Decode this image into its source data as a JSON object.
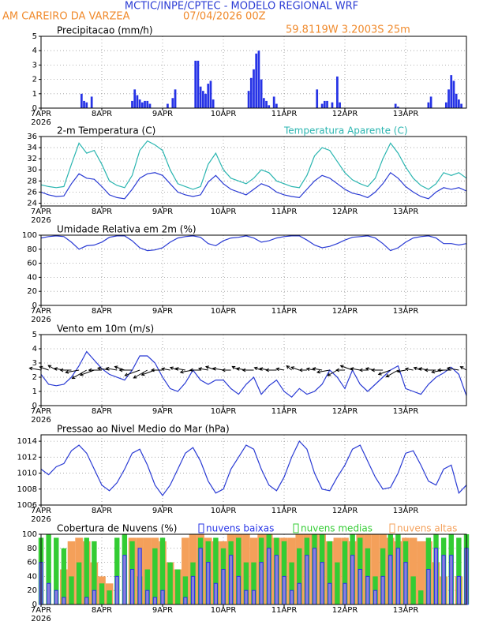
{
  "header": {
    "title": "MCTIC/INPE/CPTEC - MODELO REGIONAL WRF",
    "location": "AM CAREIRO DA VARZEA",
    "run": "07/04/2026 00Z",
    "coordinates": "59.8119W 3.2003S 25m"
  },
  "time_axis": {
    "xlim": [
      0,
      168
    ],
    "xticks": [
      {
        "value": 0,
        "label": "7APR"
      },
      {
        "value": 24,
        "label": "8APR"
      },
      {
        "value": 48,
        "label": "9APR"
      },
      {
        "value": 72,
        "label": "10APR"
      },
      {
        "value": 96,
        "label": "11APR"
      },
      {
        "value": 120,
        "label": "12APR"
      },
      {
        "value": 144,
        "label": "13APR"
      }
    ],
    "year": "2026",
    "x": [
      0,
      3,
      6,
      9,
      12,
      15,
      18,
      21,
      24,
      27,
      30,
      33,
      36,
      39,
      42,
      45,
      48,
      51,
      54,
      57,
      60,
      63,
      66,
      69,
      72,
      75,
      78,
      81,
      84,
      87,
      90,
      93,
      96,
      99,
      102,
      105,
      108,
      111,
      114,
      117,
      120,
      123,
      126,
      129,
      132,
      135,
      138,
      141,
      144,
      147,
      150,
      153,
      156,
      159,
      162,
      165,
      168
    ]
  },
  "chart_data": [
    {
      "type": "bar",
      "title": "Precipitacao (mm/h)",
      "color": "#2633e6",
      "x": [
        16,
        17,
        18,
        20,
        36,
        37,
        38,
        39,
        40,
        41,
        42,
        43,
        50,
        52,
        53,
        61,
        62,
        63,
        64,
        65,
        66,
        67,
        68,
        82,
        83,
        84,
        85,
        86,
        87,
        88,
        89,
        90,
        92,
        93,
        109,
        111,
        112,
        113,
        115,
        117,
        118,
        140,
        141,
        153,
        154,
        160,
        161,
        162,
        163,
        164,
        165,
        166
      ],
      "values": [
        1.0,
        0.5,
        0.4,
        0.8,
        0.5,
        1.3,
        0.9,
        0.6,
        0.4,
        0.5,
        0.5,
        0.3,
        0.3,
        0.7,
        1.3,
        3.3,
        3.3,
        1.5,
        1.2,
        1.0,
        1.7,
        1.9,
        0.6,
        1.2,
        2.1,
        2.7,
        3.8,
        4.0,
        2.0,
        0.7,
        0.5,
        0.2,
        0.8,
        0.3,
        1.3,
        0.3,
        0.5,
        0.5,
        0.4,
        2.2,
        0.4,
        0.3,
        0.1,
        0.4,
        0.8,
        0.4,
        1.3,
        2.3,
        1.9,
        1.0,
        0.6,
        0.3
      ],
      "ylim": [
        0,
        5
      ],
      "yticks": [
        0,
        1,
        2,
        3,
        4,
        5
      ],
      "grid": true
    },
    {
      "type": "line",
      "series": [
        {
          "name": "2-m Temperatura (C)",
          "color": "#2a3bd4",
          "values": [
            26.0,
            25.5,
            25.2,
            25.3,
            27.5,
            29.3,
            28.5,
            28.3,
            27.0,
            25.5,
            25.0,
            24.8,
            26.5,
            28.5,
            29.3,
            29.5,
            29.0,
            27.5,
            26.0,
            25.5,
            25.2,
            25.5,
            27.8,
            29.0,
            27.5,
            26.5,
            26.0,
            25.5,
            26.5,
            27.5,
            27.0,
            26.0,
            25.5,
            25.2,
            25.0,
            26.5,
            28.0,
            29.0,
            28.5,
            27.5,
            26.5,
            25.8,
            25.5,
            25.0,
            26.0,
            27.5,
            29.5,
            28.5,
            27.0,
            26.0,
            25.2,
            24.8,
            26.0,
            26.8,
            26.5,
            26.8,
            26.2
          ]
        },
        {
          "name": "Temperatura Aparente (C)",
          "color": "#2ab5b0",
          "values": [
            27.3,
            27.0,
            26.8,
            27.0,
            31.0,
            34.8,
            33.0,
            33.5,
            31.0,
            28.0,
            27.2,
            26.8,
            29.0,
            33.5,
            35.2,
            34.5,
            33.5,
            30.0,
            27.5,
            27.0,
            26.5,
            27.0,
            31.0,
            33.0,
            30.0,
            28.5,
            28.0,
            27.5,
            28.5,
            30.0,
            29.5,
            28.0,
            27.5,
            27.0,
            26.8,
            29.0,
            32.5,
            34.0,
            33.5,
            31.5,
            29.5,
            28.2,
            27.5,
            27.0,
            28.5,
            32.0,
            34.8,
            33.0,
            30.5,
            28.5,
            27.2,
            26.5,
            27.5,
            29.5,
            29.0,
            29.5,
            28.5
          ]
        }
      ],
      "ylim": [
        23.5,
        36
      ],
      "yticks": [
        24,
        26,
        28,
        30,
        32,
        34,
        36
      ],
      "grid": true
    },
    {
      "type": "line",
      "title": "Umidade Relativa em 2m (%)",
      "color": "#2a3bd4",
      "values": [
        96,
        98,
        99,
        98,
        90,
        80,
        85,
        86,
        90,
        97,
        99,
        99,
        92,
        82,
        78,
        79,
        82,
        90,
        96,
        98,
        99,
        97,
        88,
        85,
        92,
        96,
        97,
        99,
        96,
        90,
        92,
        96,
        98,
        99,
        99,
        93,
        86,
        82,
        84,
        88,
        93,
        97,
        98,
        99,
        96,
        88,
        78,
        82,
        90,
        96,
        98,
        99,
        96,
        88,
        88,
        86,
        88
      ],
      "ylim": [
        0,
        100
      ],
      "yticks": [
        0,
        20,
        40,
        60,
        80,
        100
      ],
      "grid": true
    },
    {
      "type": "line",
      "title": "Vento em 10m (m/s)",
      "color": "#2a3bd4",
      "values": [
        2.2,
        1.5,
        1.4,
        1.5,
        2.0,
        2.8,
        3.8,
        3.2,
        2.6,
        2.2,
        2.0,
        1.8,
        2.5,
        3.5,
        3.5,
        3.0,
        2.0,
        1.2,
        1.0,
        1.6,
        2.5,
        1.8,
        1.5,
        1.8,
        1.8,
        1.2,
        0.8,
        1.5,
        2.0,
        0.8,
        1.4,
        1.8,
        1.0,
        0.6,
        1.2,
        0.8,
        1.0,
        1.5,
        2.5,
        2.0,
        1.2,
        2.5,
        1.5,
        1.0,
        1.5,
        2.0,
        2.5,
        2.8,
        1.2,
        1.0,
        0.8,
        1.5,
        2.0,
        2.3,
        2.7,
        2.2,
        0.7
      ],
      "directions": [
        100,
        110,
        120,
        100,
        90,
        80,
        60,
        70,
        90,
        100,
        100,
        110,
        90,
        70,
        60,
        70,
        90,
        100,
        110,
        100,
        80,
        90,
        100,
        110,
        100,
        90,
        120,
        100,
        90,
        110,
        100,
        90,
        100,
        130,
        110,
        90,
        100,
        100,
        80,
        60,
        90,
        110,
        100,
        90,
        100,
        90,
        70,
        60,
        80,
        100,
        110,
        100,
        90,
        80,
        90,
        100,
        120
      ],
      "ylim": [
        0,
        5
      ],
      "yticks": [
        0,
        1,
        2,
        3,
        4,
        5
      ],
      "grid": true
    },
    {
      "type": "line",
      "title": "Pressao ao Nivel Medio do Mar (hPa)",
      "color": "#2a3bd4",
      "values": [
        1010.5,
        1009.8,
        1010.8,
        1011.2,
        1012.8,
        1013.5,
        1012.5,
        1010.5,
        1008.5,
        1007.8,
        1008.8,
        1010.5,
        1012.5,
        1013.0,
        1011.0,
        1008.5,
        1007.2,
        1008.5,
        1010.5,
        1012.5,
        1013.2,
        1011.5,
        1009.0,
        1007.5,
        1008.0,
        1010.5,
        1012.0,
        1013.5,
        1013.0,
        1010.5,
        1008.5,
        1007.8,
        1009.5,
        1012.0,
        1014.0,
        1013.0,
        1010.0,
        1008.0,
        1007.8,
        1009.5,
        1011.0,
        1013.0,
        1013.5,
        1011.5,
        1009.5,
        1008.0,
        1008.2,
        1010.0,
        1012.5,
        1012.8,
        1011.0,
        1009.0,
        1008.5,
        1010.5,
        1011.0,
        1007.5,
        1008.5
      ],
      "ylim": [
        1006,
        1014.8
      ],
      "yticks": [
        1006,
        1008,
        1010,
        1012,
        1014
      ],
      "grid": true
    },
    {
      "type": "bar",
      "title": "Cobertura de Nuvens (%)",
      "series": [
        {
          "name": "nuvens altas",
          "color": "#f4a05a",
          "values": [
            0,
            0,
            0,
            50,
            90,
            95,
            90,
            60,
            40,
            30,
            0,
            0,
            95,
            95,
            95,
            95,
            90,
            60,
            50,
            95,
            100,
            100,
            95,
            90,
            90,
            100,
            100,
            100,
            95,
            100,
            100,
            95,
            95,
            95,
            100,
            100,
            100,
            100,
            90,
            95,
            95,
            90,
            100,
            100,
            100,
            100,
            95,
            90,
            95,
            95,
            90,
            90,
            60,
            40,
            0,
            40,
            0
          ]
        },
        {
          "name": "nuvens medias",
          "color": "#33cc33",
          "values": [
            95,
            100,
            95,
            80,
            40,
            60,
            95,
            90,
            30,
            20,
            95,
            100,
            90,
            40,
            50,
            80,
            95,
            60,
            50,
            40,
            60,
            95,
            90,
            95,
            80,
            90,
            95,
            60,
            60,
            95,
            100,
            95,
            90,
            60,
            80,
            95,
            100,
            100,
            90,
            60,
            90,
            100,
            95,
            80,
            40,
            80,
            100,
            100,
            90,
            40,
            20,
            95,
            100,
            95,
            100,
            95,
            100
          ]
        },
        {
          "name": "nuvens baixas",
          "color": "#2633e6",
          "values": [
            60,
            30,
            20,
            10,
            0,
            0,
            10,
            20,
            0,
            0,
            40,
            70,
            50,
            80,
            20,
            10,
            20,
            0,
            0,
            10,
            40,
            80,
            60,
            30,
            50,
            70,
            40,
            20,
            20,
            60,
            80,
            70,
            40,
            20,
            30,
            70,
            80,
            60,
            30,
            0,
            30,
            70,
            50,
            40,
            20,
            40,
            70,
            80,
            60,
            0,
            0,
            50,
            80,
            70,
            70,
            40,
            80
          ]
        }
      ],
      "ylim": [
        0,
        100
      ],
      "yticks": [
        0,
        20,
        40,
        60,
        80,
        100
      ],
      "grid": true
    }
  ]
}
